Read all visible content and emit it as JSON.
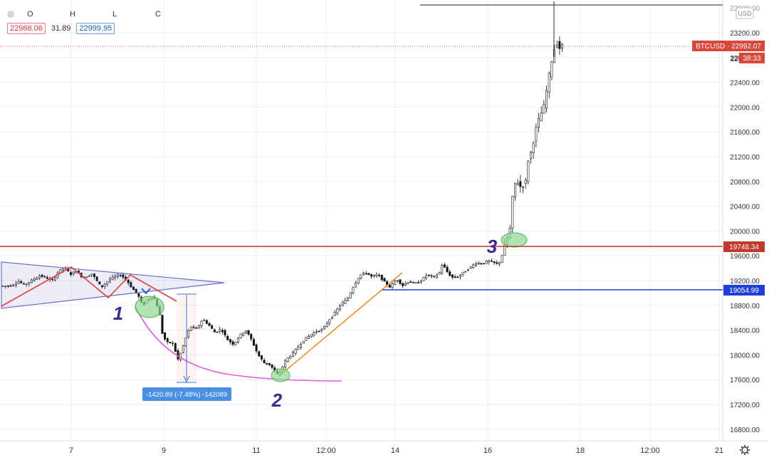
{
  "ohlc_legend": {
    "keys": [
      "O",
      "H",
      "L",
      "C"
    ],
    "bid": "22968.06",
    "spread": "31.89",
    "ask": "22999.95"
  },
  "currency_badge": "USD",
  "price_tag": {
    "label": "BTCUSD · 22992.07",
    "countdown": "38:33",
    "price_cut": "22"
  },
  "levels": [
    {
      "name": "resistance",
      "value": "19748.34",
      "color": "#c0392b"
    },
    {
      "name": "support",
      "value": "19054.99",
      "color": "#1e40d8"
    }
  ],
  "measure_label": "-1420.89 (-7.48%) -142089",
  "annotations": [
    "1",
    "2",
    "3"
  ],
  "colors": {
    "pink_curve": "#e05ce0",
    "orange_trend": "#e8922a",
    "red_zigzag": "#e0403a",
    "triangle": "#6b6bd0",
    "highlight": "#8ed98e"
  },
  "chart_data": {
    "type": "candlestick",
    "symbol": "BTCUSD",
    "currency": "USD",
    "y_ticks": [
      "23200.00",
      "22800.00",
      "22400.00",
      "22000.00",
      "21600.00",
      "21200.00",
      "20800.00",
      "20400.00",
      "20000.00",
      "19600.00",
      "19200.00",
      "18800.00",
      "18400.00",
      "18000.00",
      "17600.00",
      "17200.00",
      "16800.00"
    ],
    "x_ticks": [
      "7",
      "9",
      "11",
      "12:00",
      "14",
      "16",
      "18",
      "12:00",
      "21"
    ],
    "ylim": [
      16620,
      23560
    ],
    "path": [
      [
        0,
        19110
      ],
      [
        0.3,
        19120
      ],
      [
        0.5,
        19190
      ],
      [
        0.7,
        19130
      ],
      [
        1.0,
        19220
      ],
      [
        1.2,
        19280
      ],
      [
        1.4,
        19250
      ],
      [
        1.6,
        19190
      ],
      [
        1.8,
        19340
      ],
      [
        2.0,
        19420
      ],
      [
        2.2,
        19300
      ],
      [
        2.4,
        19360
      ],
      [
        2.6,
        19240
      ],
      [
        2.9,
        19310
      ],
      [
        3.2,
        19090
      ],
      [
        3.5,
        19230
      ],
      [
        3.8,
        19300
      ],
      [
        4.0,
        19220
      ],
      [
        4.2,
        19080
      ],
      [
        4.4,
        18960
      ],
      [
        4.55,
        18790
      ],
      [
        4.7,
        18900
      ],
      [
        4.9,
        18940
      ],
      [
        5.0,
        18820
      ],
      [
        5.1,
        18640
      ],
      [
        5.2,
        18300
      ],
      [
        5.4,
        18170
      ],
      [
        5.5,
        18230
      ],
      [
        5.7,
        17920
      ],
      [
        5.8,
        18050
      ],
      [
        6.0,
        18350
      ],
      [
        6.1,
        18460
      ],
      [
        6.3,
        18420
      ],
      [
        6.5,
        18580
      ],
      [
        6.7,
        18480
      ],
      [
        6.9,
        18360
      ],
      [
        7.1,
        18420
      ],
      [
        7.3,
        18250
      ],
      [
        7.5,
        18170
      ],
      [
        7.7,
        18310
      ],
      [
        7.9,
        18400
      ],
      [
        8.1,
        18230
      ],
      [
        8.3,
        18000
      ],
      [
        8.5,
        17870
      ],
      [
        8.7,
        17840
      ],
      [
        8.9,
        17680
      ],
      [
        9.0,
        17710
      ],
      [
        9.2,
        17920
      ],
      [
        9.4,
        18010
      ],
      [
        9.6,
        18130
      ],
      [
        9.8,
        18250
      ],
      [
        10.0,
        18320
      ],
      [
        10.2,
        18380
      ],
      [
        10.4,
        18410
      ],
      [
        10.6,
        18560
      ],
      [
        10.8,
        18680
      ],
      [
        11.0,
        18820
      ],
      [
        11.2,
        18900
      ],
      [
        11.4,
        19110
      ],
      [
        11.6,
        19280
      ],
      [
        11.8,
        19330
      ],
      [
        12.0,
        19260
      ],
      [
        12.2,
        19300
      ],
      [
        12.4,
        19180
      ],
      [
        12.6,
        19090
      ],
      [
        12.8,
        19230
      ],
      [
        13.0,
        19120
      ],
      [
        13.2,
        19190
      ],
      [
        13.4,
        19150
      ],
      [
        13.6,
        19200
      ],
      [
        13.8,
        19300
      ],
      [
        14.0,
        19250
      ],
      [
        14.2,
        19330
      ],
      [
        14.3,
        19480
      ],
      [
        14.4,
        19370
      ],
      [
        14.6,
        19250
      ],
      [
        14.8,
        19260
      ],
      [
        15.0,
        19340
      ],
      [
        15.2,
        19410
      ],
      [
        15.4,
        19490
      ],
      [
        15.6,
        19470
      ],
      [
        15.8,
        19520
      ],
      [
        16.0,
        19480
      ],
      [
        16.1,
        19460
      ],
      [
        16.2,
        19550
      ],
      [
        16.35,
        19800
      ],
      [
        16.5,
        20050
      ],
      [
        16.6,
        20690
      ],
      [
        16.7,
        20820
      ],
      [
        16.85,
        20700
      ],
      [
        17.0,
        20800
      ],
      [
        17.1,
        21200
      ],
      [
        17.2,
        21300
      ],
      [
        17.3,
        21580
      ],
      [
        17.4,
        21760
      ],
      [
        17.6,
        22020
      ],
      [
        17.7,
        22320
      ],
      [
        17.8,
        22620
      ],
      [
        17.9,
        22880
      ],
      [
        18.0,
        23050
      ],
      [
        18.1,
        22950
      ],
      [
        18.2,
        22990
      ]
    ]
  }
}
